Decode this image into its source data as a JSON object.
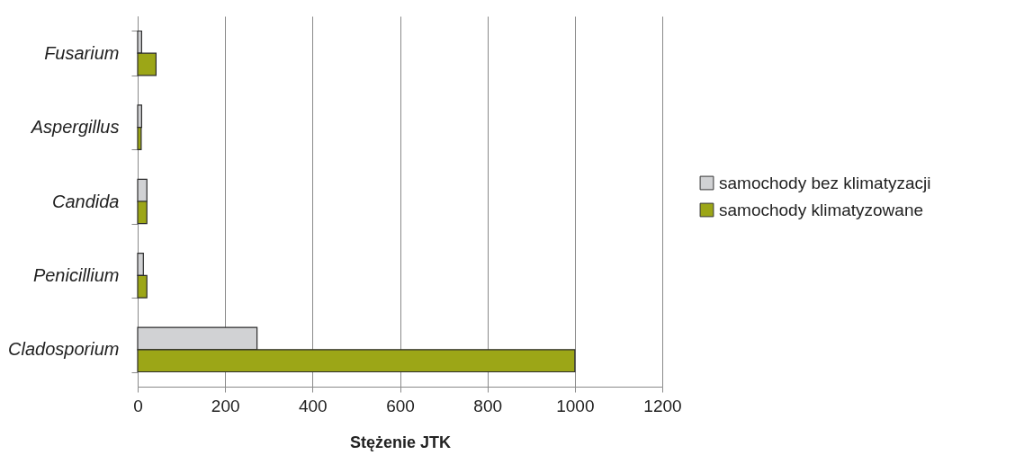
{
  "chart_data": {
    "type": "bar",
    "orientation": "horizontal",
    "xlabel": "Stężenie JTK",
    "categories": [
      "Fusarium",
      "Aspergillus",
      "Candida",
      "Penicillium",
      "Cladosporium"
    ],
    "series": [
      {
        "name": "samochody bez klimatyzacji",
        "color": "#d1d2d4",
        "values": [
          9,
          9,
          21,
          13,
          273
        ]
      },
      {
        "name": "samochody klimatyzowane",
        "color": "#9ca617",
        "values": [
          42,
          8,
          21,
          21,
          1000
        ]
      }
    ],
    "xlim": [
      0,
      1200
    ],
    "xticks": [
      0,
      200,
      400,
      600,
      800,
      1000,
      1200
    ],
    "grid": "x",
    "legend": "right"
  }
}
